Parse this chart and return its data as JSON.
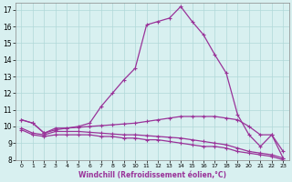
{
  "xlabel": "Windchill (Refroidissement éolien,°C)",
  "line_color": "#993399",
  "bg_color": "#d8f0f0",
  "grid_color": "#b0d8d8",
  "xlim": [
    -0.5,
    23.5
  ],
  "ylim": [
    8,
    17.4
  ],
  "xticks": [
    0,
    1,
    2,
    3,
    4,
    5,
    6,
    7,
    8,
    9,
    10,
    11,
    12,
    13,
    14,
    15,
    16,
    17,
    18,
    19,
    20,
    21,
    22,
    23
  ],
  "yticks": [
    8,
    9,
    10,
    11,
    12,
    13,
    14,
    15,
    16,
    17
  ],
  "curves": [
    {
      "x": [
        0,
        1,
        2,
        3,
        4,
        5,
        6,
        7,
        8,
        9,
        10,
        11,
        12,
        13,
        14,
        15,
        16,
        17,
        18,
        19,
        20,
        21,
        22,
        23
      ],
      "y": [
        10.4,
        10.2,
        9.6,
        9.9,
        9.9,
        10.0,
        10.2,
        11.2,
        12.0,
        12.8,
        13.5,
        16.1,
        16.3,
        16.5,
        17.2,
        16.3,
        15.5,
        14.3,
        13.2,
        10.7,
        9.5,
        8.8,
        9.5,
        8.1
      ]
    },
    {
      "x": [
        0,
        1,
        2,
        3,
        4,
        5,
        6,
        7,
        8,
        9,
        10,
        11,
        12,
        13,
        14,
        15,
        16,
        17,
        18,
        19,
        20,
        21,
        22,
        23
      ],
      "y": [
        10.4,
        10.2,
        9.6,
        9.8,
        9.9,
        9.95,
        10.0,
        10.05,
        10.1,
        10.15,
        10.2,
        10.3,
        10.4,
        10.5,
        10.6,
        10.6,
        10.6,
        10.6,
        10.5,
        10.4,
        10.0,
        9.5,
        9.5,
        8.5
      ]
    },
    {
      "x": [
        0,
        1,
        2,
        3,
        4,
        5,
        6,
        7,
        8,
        9,
        10,
        11,
        12,
        13,
        14,
        15,
        16,
        17,
        18,
        19,
        20,
        21,
        22,
        23
      ],
      "y": [
        9.8,
        9.5,
        9.4,
        9.5,
        9.5,
        9.5,
        9.5,
        9.4,
        9.4,
        9.3,
        9.3,
        9.2,
        9.2,
        9.1,
        9.0,
        8.9,
        8.8,
        8.8,
        8.7,
        8.5,
        8.4,
        8.3,
        8.2,
        8.0
      ]
    },
    {
      "x": [
        0,
        1,
        2,
        3,
        4,
        5,
        6,
        7,
        8,
        9,
        10,
        11,
        12,
        13,
        14,
        15,
        16,
        17,
        18,
        19,
        20,
        21,
        22,
        23
      ],
      "y": [
        9.9,
        9.6,
        9.5,
        9.7,
        9.7,
        9.7,
        9.65,
        9.6,
        9.55,
        9.5,
        9.5,
        9.45,
        9.4,
        9.35,
        9.3,
        9.2,
        9.1,
        9.0,
        8.9,
        8.7,
        8.5,
        8.4,
        8.3,
        8.1
      ]
    }
  ],
  "marker": "+",
  "marker_size": 3,
  "linewidth": 0.9
}
